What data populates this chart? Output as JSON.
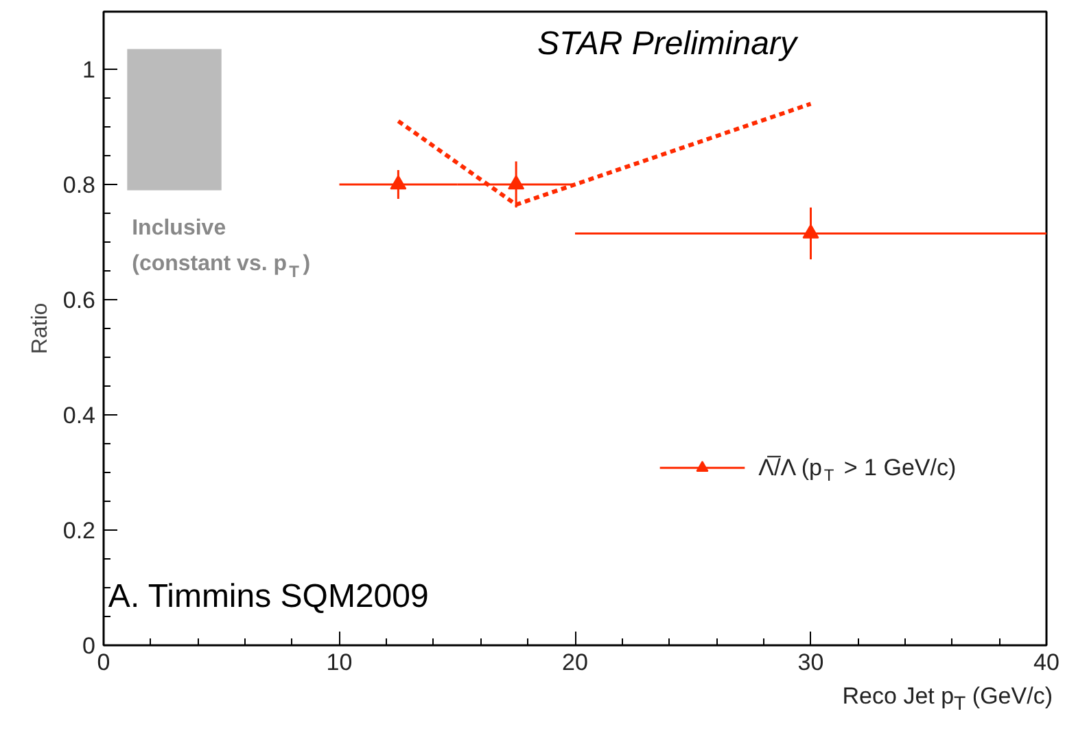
{
  "chart_data": {
    "type": "scatter",
    "xlabel": "Reco Jet p$_{T}$ (GeV/c)",
    "ylabel": "Ratio",
    "xlim": [
      0,
      40
    ],
    "xticks": [
      0,
      10,
      20,
      30,
      40
    ],
    "ylim": [
      0,
      1.1
    ],
    "yticks": [
      0,
      0.2,
      0.4,
      0.6,
      0.8,
      1
    ],
    "grid": false,
    "legend": "bottom right",
    "marker": "triangle",
    "series": [
      {
        "name": "Λ̅/Λ (p$_{T}$ > 1 GeV/c)",
        "color": "#ff2a00",
        "x": [
          12.5,
          17.5,
          30
        ],
        "values": [
          0.8,
          0.8,
          0.715
        ],
        "errors": [
          0.025,
          0.04,
          0.045
        ],
        "xerrors": [
          2.5,
          2.5,
          10
        ]
      },
      {
        "type": "line",
        "color": "#ff2a00",
        "line_style": "dotted",
        "marker": "none",
        "x": [
          12.5,
          17.5,
          30
        ],
        "values": [
          0.91,
          0.765,
          0.94
        ]
      }
    ],
    "bands": [
      {
        "axis": "y",
        "from": 0.79,
        "to": 1.035,
        "label": "Inclusive\n(constant vs. p$_{T}$)",
        "color": "#bbbbbb"
      }
    ],
    "annotations": [
      "STAR Preliminary",
      "A. Timmins SQM2009"
    ]
  }
}
